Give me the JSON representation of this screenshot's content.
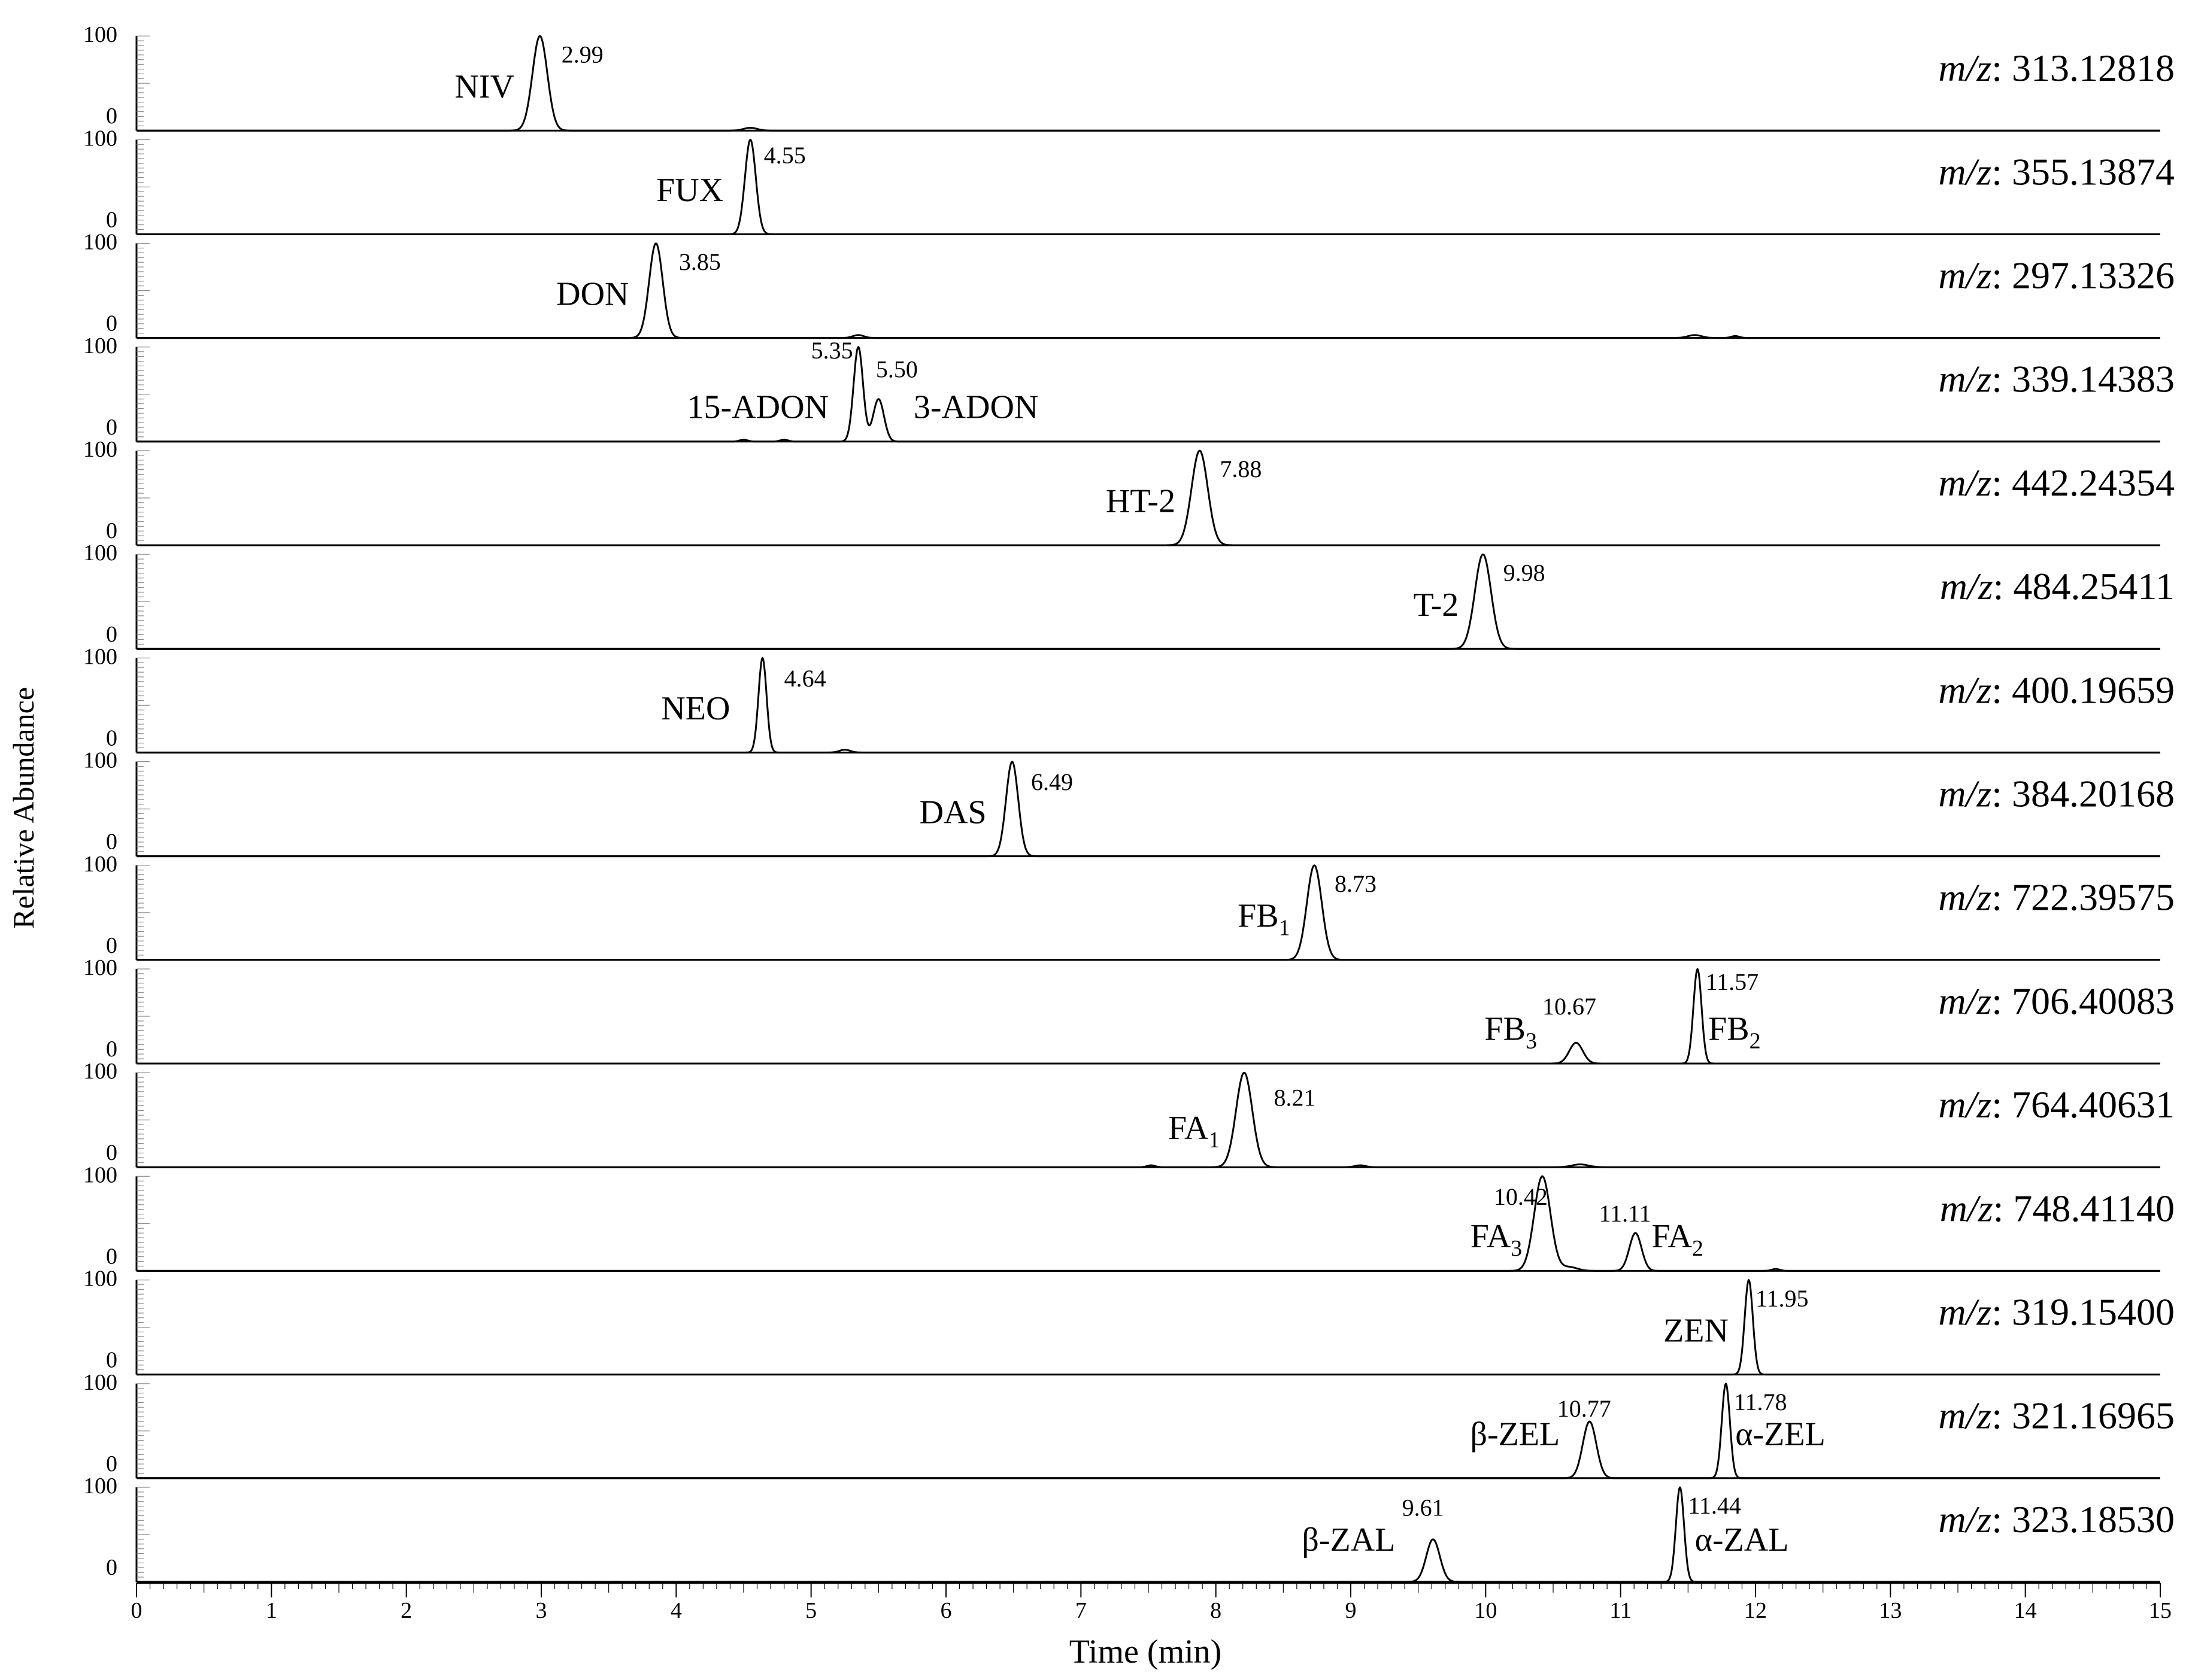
{
  "chart_data": {
    "type": "line",
    "xlabel": "Time (min)",
    "ylabel": "Relative Abundance",
    "xlim": [
      0,
      15
    ],
    "x_ticks": [
      "0",
      "1",
      "2",
      "3",
      "4",
      "5",
      "6",
      "7",
      "8",
      "9",
      "10",
      "11",
      "12",
      "13",
      "14",
      "15"
    ],
    "y_tick_labels": [
      "0",
      "100"
    ],
    "mz_prefix": "m/z",
    "series": [
      {
        "mz": ": 313.12818",
        "peaks": [
          {
            "rt": 2.99,
            "height": 100,
            "width": 0.055
          },
          {
            "rt": 4.55,
            "height": 3,
            "width": 0.05
          }
        ],
        "rt_labels": [
          {
            "text": "2.99",
            "rt": 3.15,
            "height": 72
          }
        ],
        "names": [
          {
            "main": "NIV",
            "sub": "",
            "rt": 2.8,
            "height": 35,
            "anchor": "end"
          }
        ]
      },
      {
        "mz": ": 355.13874",
        "peaks": [
          {
            "rt": 4.55,
            "height": 100,
            "width": 0.04
          }
        ],
        "rt_labels": [
          {
            "text": "4.55",
            "rt": 4.65,
            "height": 75
          }
        ],
        "names": [
          {
            "main": "FUX",
            "sub": "",
            "rt": 4.35,
            "height": 35,
            "anchor": "end"
          }
        ]
      },
      {
        "mz": ": 297.13326",
        "peaks": [
          {
            "rt": 3.85,
            "height": 100,
            "width": 0.05
          },
          {
            "rt": 5.35,
            "height": 3,
            "width": 0.04
          },
          {
            "rt": 11.55,
            "height": 3,
            "width": 0.05
          },
          {
            "rt": 11.85,
            "height": 2,
            "width": 0.03
          }
        ],
        "rt_labels": [
          {
            "text": "3.85",
            "rt": 4.02,
            "height": 72
          }
        ],
        "names": [
          {
            "main": "DON",
            "sub": "",
            "rt": 3.65,
            "height": 35,
            "anchor": "end"
          }
        ]
      },
      {
        "mz": ": 339.14383",
        "peaks": [
          {
            "rt": 5.35,
            "height": 100,
            "width": 0.035
          },
          {
            "rt": 5.5,
            "height": 45,
            "width": 0.04
          },
          {
            "rt": 4.8,
            "height": 2,
            "width": 0.03
          },
          {
            "rt": 4.5,
            "height": 2,
            "width": 0.03
          }
        ],
        "rt_labels": [
          {
            "text": "5.35",
            "rt": 5.0,
            "height": 88
          },
          {
            "text": "5.50",
            "rt": 5.48,
            "height": 68
          }
        ],
        "names": [
          {
            "main": "15-ADON",
            "sub": "",
            "rt": 5.13,
            "height": 25,
            "anchor": "end"
          },
          {
            "main": "3-ADON",
            "sub": "",
            "rt": 5.76,
            "height": 25,
            "anchor": "start"
          }
        ]
      },
      {
        "mz": ": 442.24354",
        "peaks": [
          {
            "rt": 7.88,
            "height": 100,
            "width": 0.06
          }
        ],
        "rt_labels": [
          {
            "text": "7.88",
            "rt": 8.03,
            "height": 72
          }
        ],
        "names": [
          {
            "main": "HT-2",
            "sub": "",
            "rt": 7.7,
            "height": 35,
            "anchor": "end"
          }
        ]
      },
      {
        "mz": ": 484.25411",
        "peaks": [
          {
            "rt": 9.98,
            "height": 100,
            "width": 0.06
          }
        ],
        "rt_labels": [
          {
            "text": "9.98",
            "rt": 10.13,
            "height": 72
          }
        ],
        "names": [
          {
            "main": "T-2",
            "sub": "",
            "rt": 9.8,
            "height": 35,
            "anchor": "end"
          }
        ]
      },
      {
        "mz": ": 400.19659",
        "peaks": [
          {
            "rt": 4.64,
            "height": 100,
            "width": 0.03
          },
          {
            "rt": 5.25,
            "height": 3,
            "width": 0.04
          }
        ],
        "rt_labels": [
          {
            "text": "4.64",
            "rt": 4.8,
            "height": 70
          }
        ],
        "names": [
          {
            "main": "NEO",
            "sub": "",
            "rt": 4.4,
            "height": 35,
            "anchor": "end"
          }
        ]
      },
      {
        "mz": ": 384.20168",
        "peaks": [
          {
            "rt": 6.49,
            "height": 100,
            "width": 0.045
          }
        ],
        "rt_labels": [
          {
            "text": "6.49",
            "rt": 6.63,
            "height": 70
          }
        ],
        "names": [
          {
            "main": "DAS",
            "sub": "",
            "rt": 6.3,
            "height": 35,
            "anchor": "end"
          }
        ]
      },
      {
        "mz": ": 722.39575",
        "peaks": [
          {
            "rt": 8.73,
            "height": 100,
            "width": 0.055
          }
        ],
        "rt_labels": [
          {
            "text": "8.73",
            "rt": 8.88,
            "height": 72
          }
        ],
        "names": [
          {
            "main": "FB",
            "sub": "1",
            "rt": 8.55,
            "height": 35,
            "anchor": "end"
          }
        ]
      },
      {
        "mz": ": 706.40083",
        "peaks": [
          {
            "rt": 11.57,
            "height": 100,
            "width": 0.03
          },
          {
            "rt": 10.67,
            "height": 22,
            "width": 0.05
          }
        ],
        "rt_labels": [
          {
            "text": "11.57",
            "rt": 11.63,
            "height": 78
          },
          {
            "text": "10.67",
            "rt": 10.42,
            "height": 52
          }
        ],
        "names": [
          {
            "main": "FB",
            "sub": "3",
            "rt": 10.38,
            "height": 25,
            "anchor": "end"
          },
          {
            "main": "FB",
            "sub": "2",
            "rt": 11.65,
            "height": 25,
            "anchor": "start"
          }
        ]
      },
      {
        "mz": ": 764.40631",
        "peaks": [
          {
            "rt": 8.21,
            "height": 100,
            "width": 0.06
          },
          {
            "rt": 10.7,
            "height": 3,
            "width": 0.06
          },
          {
            "rt": 9.07,
            "height": 2,
            "width": 0.04
          },
          {
            "rt": 7.52,
            "height": 2,
            "width": 0.03
          }
        ],
        "rt_labels": [
          {
            "text": "8.21",
            "rt": 8.43,
            "height": 65
          }
        ],
        "names": [
          {
            "main": "FA",
            "sub": "1",
            "rt": 8.03,
            "height": 30,
            "anchor": "end"
          }
        ]
      },
      {
        "mz": ": 748.41140",
        "peaks": [
          {
            "rt": 10.42,
            "height": 100,
            "width": 0.06
          },
          {
            "rt": 11.11,
            "height": 40,
            "width": 0.045
          },
          {
            "rt": 10.62,
            "height": 4,
            "width": 0.06
          },
          {
            "rt": 12.15,
            "height": 2,
            "width": 0.03
          }
        ],
        "rt_labels": [
          {
            "text": "10.42",
            "rt": 10.06,
            "height": 70
          },
          {
            "text": "11.11",
            "rt": 10.84,
            "height": 52
          }
        ],
        "names": [
          {
            "main": "FA",
            "sub": "3",
            "rt": 10.27,
            "height": 25,
            "anchor": "end"
          },
          {
            "main": "FA",
            "sub": "2",
            "rt": 11.23,
            "height": 25,
            "anchor": "start"
          }
        ]
      },
      {
        "mz": ": 319.15400",
        "peaks": [
          {
            "rt": 11.95,
            "height": 100,
            "width": 0.03
          }
        ],
        "rt_labels": [
          {
            "text": "11.95",
            "rt": 12.0,
            "height": 72
          }
        ],
        "names": [
          {
            "main": "ZEN",
            "sub": "",
            "rt": 11.8,
            "height": 35,
            "anchor": "end"
          }
        ]
      },
      {
        "mz": ": 321.16965",
        "peaks": [
          {
            "rt": 11.78,
            "height": 100,
            "width": 0.03
          },
          {
            "rt": 10.77,
            "height": 60,
            "width": 0.05
          }
        ],
        "rt_labels": [
          {
            "text": "11.78",
            "rt": 11.84,
            "height": 72
          },
          {
            "text": "10.77",
            "rt": 10.53,
            "height": 65
          }
        ],
        "names": [
          {
            "main": "β-ZEL",
            "sub": "",
            "rt": 10.55,
            "height": 35,
            "anchor": "end"
          },
          {
            "main": "α-ZEL",
            "sub": "",
            "rt": 11.85,
            "height": 35,
            "anchor": "start"
          }
        ]
      },
      {
        "mz": ": 323.18530",
        "peaks": [
          {
            "rt": 11.44,
            "height": 100,
            "width": 0.03
          },
          {
            "rt": 9.61,
            "height": 45,
            "width": 0.05
          }
        ],
        "rt_labels": [
          {
            "text": "11.44",
            "rt": 11.5,
            "height": 72
          },
          {
            "text": "9.61",
            "rt": 9.38,
            "height": 70
          }
        ],
        "names": [
          {
            "main": "β-ZAL",
            "sub": "",
            "rt": 9.33,
            "height": 33,
            "anchor": "end"
          },
          {
            "main": "α-ZAL",
            "sub": "",
            "rt": 11.55,
            "height": 33,
            "anchor": "start"
          }
        ]
      }
    ]
  }
}
